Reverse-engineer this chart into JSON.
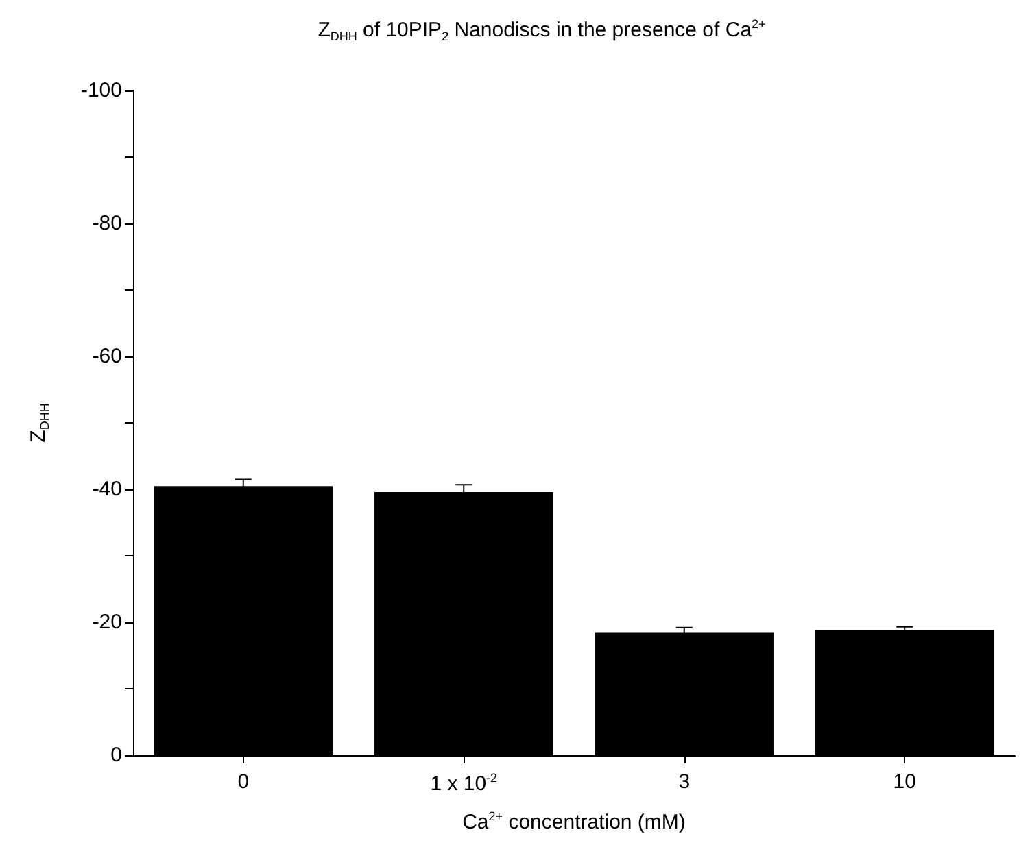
{
  "chart_data": {
    "type": "bar",
    "title": "Z$_{DHH}$ of 10PIP$_{2}$ Nanodiscs in the presence of Ca$^{2+}$",
    "xlabel": "Ca$^{2+}$ concentration (mM)",
    "ylabel": "Z$_{DHH}$",
    "categories": [
      "0",
      "1 x 10$^{-2}$",
      "3",
      "10"
    ],
    "values": [
      -40.5,
      -39.6,
      -18.5,
      -18.8
    ],
    "errors": [
      1.0,
      1.1,
      0.7,
      0.5
    ],
    "color": "#000000",
    "ylim": [
      0,
      -100
    ],
    "yticks": [
      0,
      {
        "value": -10,
        "label": null
      },
      -20,
      {
        "value": -30,
        "label": null
      },
      -40,
      {
        "value": -50,
        "label": null
      },
      -60,
      {
        "value": -70,
        "label": null
      },
      -80,
      {
        "value": -90,
        "label": null
      },
      -100
    ],
    "grid": false
  }
}
